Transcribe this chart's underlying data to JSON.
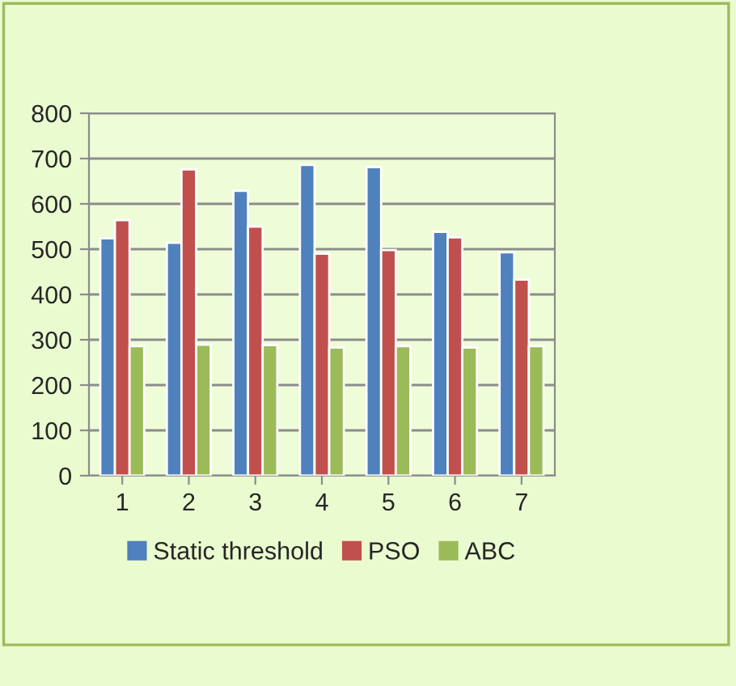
{
  "chart_data": {
    "type": "bar",
    "categories": [
      "1",
      "2",
      "3",
      "4",
      "5",
      "6",
      "7"
    ],
    "series": [
      {
        "name": "Static threshold",
        "color": "#4f81bd",
        "values": [
          524,
          514,
          629,
          686,
          681,
          538,
          493
        ]
      },
      {
        "name": "PSO",
        "color": "#c0504d",
        "values": [
          564,
          676,
          550,
          490,
          498,
          526,
          433
        ]
      },
      {
        "name": "ABC",
        "color": "#9bbb59",
        "values": [
          286,
          289,
          288,
          283,
          286,
          283,
          286
        ]
      }
    ],
    "ylim": [
      0,
      800
    ],
    "yticks": [
      0,
      100,
      200,
      300,
      400,
      500,
      600,
      700,
      800
    ],
    "grid": "y",
    "legend": "bottom"
  }
}
